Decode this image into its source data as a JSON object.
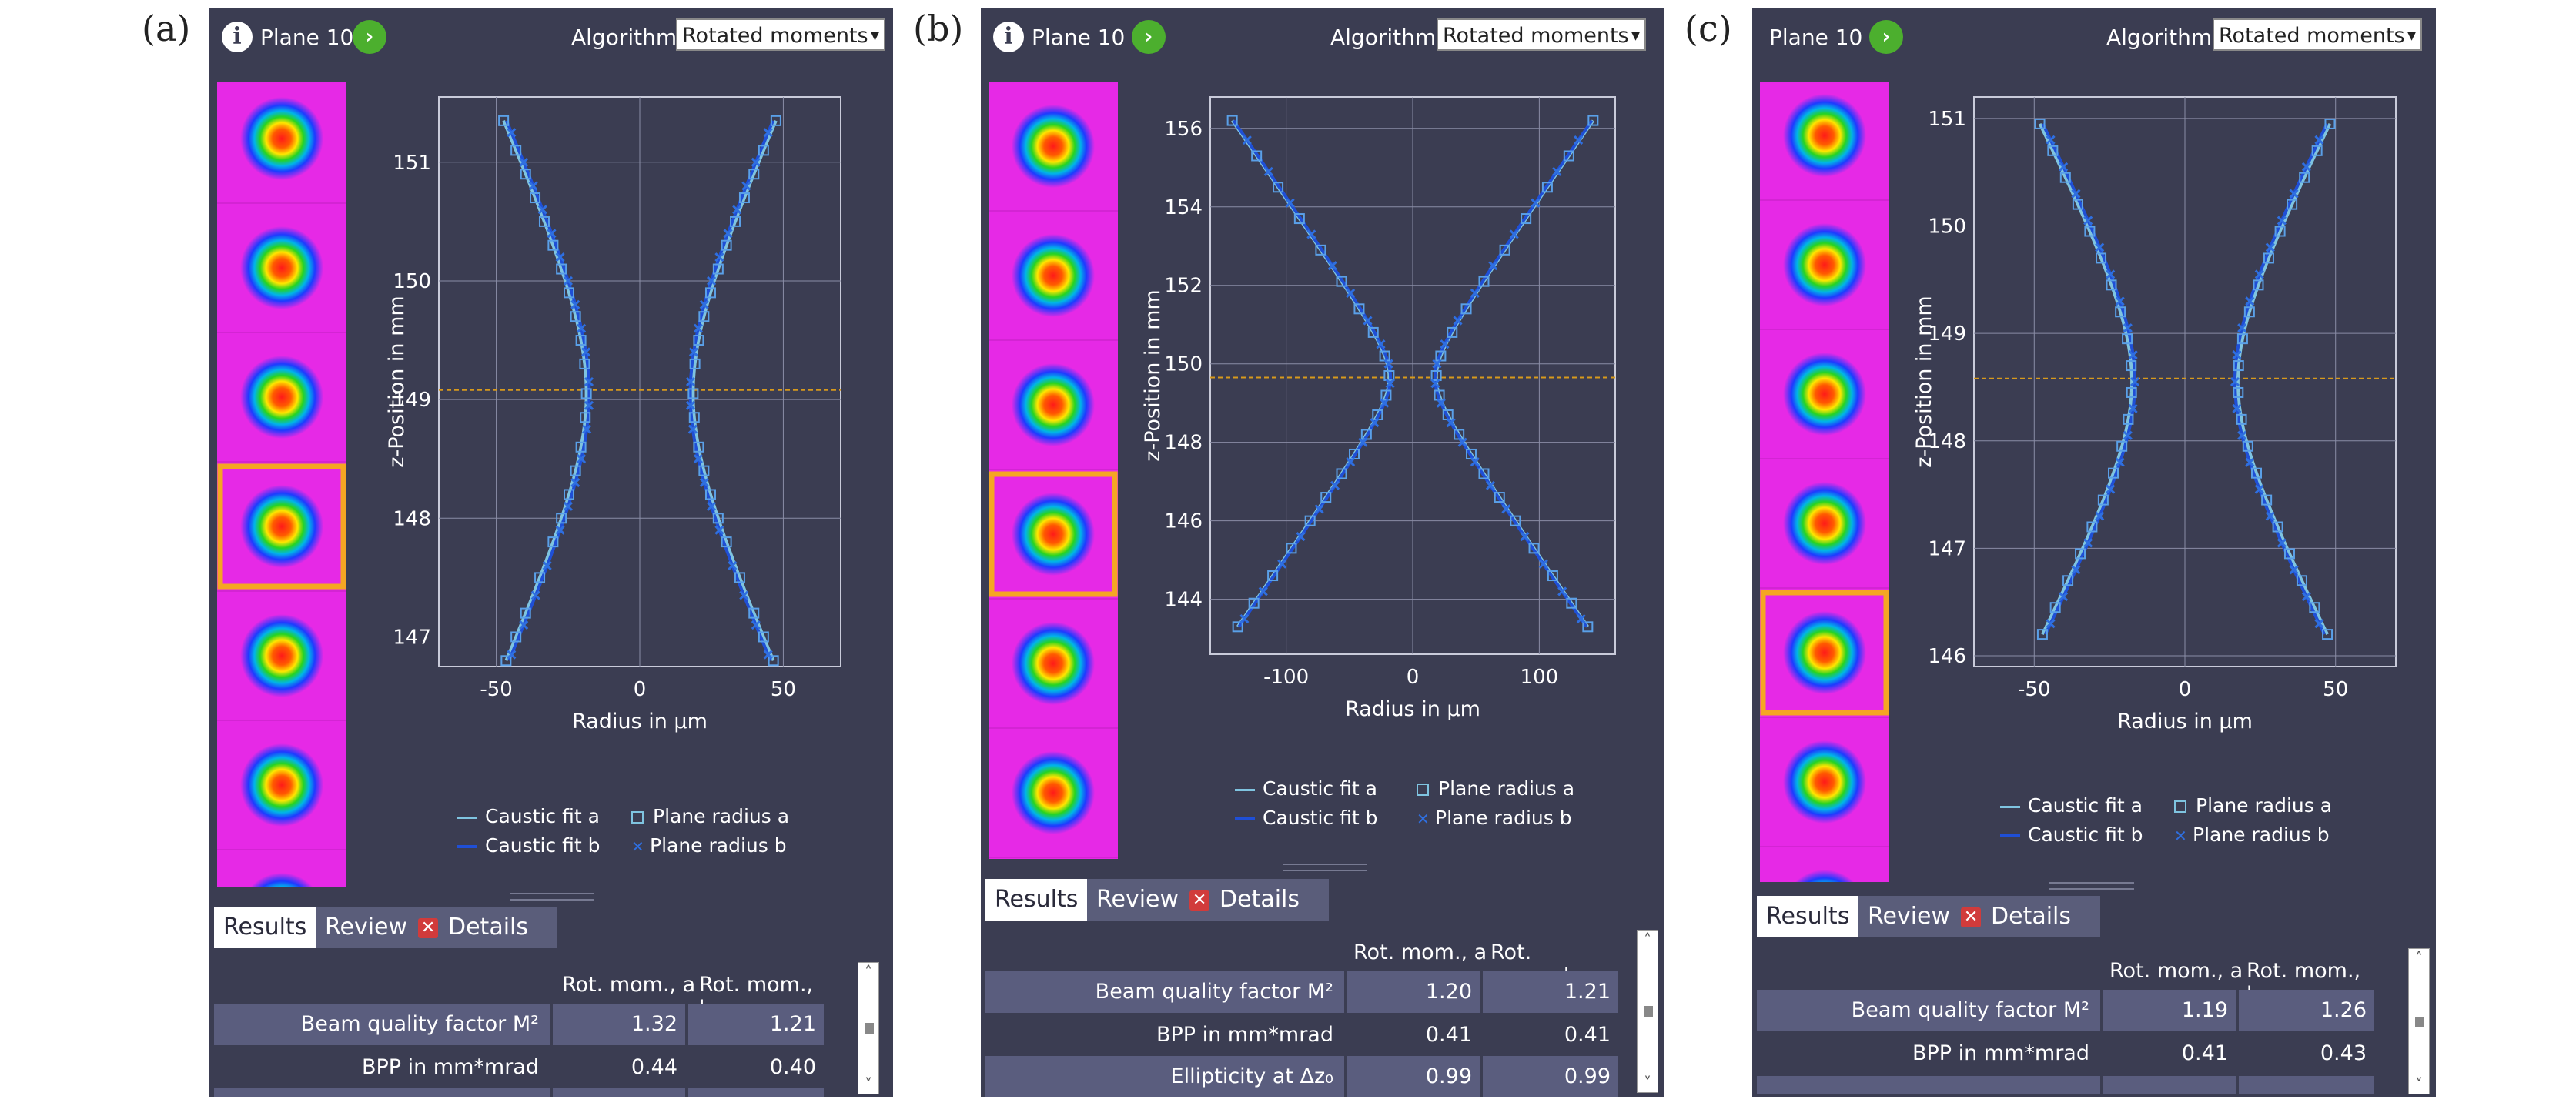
{
  "panels": [
    {
      "letter": "(a)",
      "plane_label": "Plane 10",
      "algorithm_label": "Algorithm",
      "algorithm_value": "Rotated moments",
      "chart_data": {
        "type": "line",
        "xlabel": "Radius in µm",
        "ylabel": "z-Position in mm",
        "xlim": [
          -70,
          70
        ],
        "ylim": [
          146.75,
          151.55
        ],
        "xticks": [
          -50,
          0,
          50
        ],
        "yticks": [
          147,
          148,
          149,
          150,
          151
        ],
        "grid": true,
        "focus_z": 149.08,
        "caustic": {
          "w0": 18,
          "z0": 149.05,
          "k": 18.8,
          "zmin": 146.8,
          "zmax": 151.35
        },
        "points_a_z": [
          146.8,
          147.0,
          147.2,
          147.5,
          147.8,
          148.0,
          148.2,
          148.4,
          148.6,
          148.85,
          149.05,
          149.3,
          149.5,
          149.7,
          149.9,
          150.1,
          150.3,
          150.5,
          150.7,
          150.9,
          151.1,
          151.35
        ],
        "points_b_z": [
          146.85,
          147.1,
          147.35,
          147.6,
          147.9,
          148.1,
          148.3,
          148.5,
          148.75,
          148.95,
          149.15,
          149.4,
          149.6,
          149.8,
          150.0,
          150.2,
          150.4,
          150.6,
          150.8,
          151.0,
          151.25
        ]
      },
      "legend": {
        "fit_a": "Caustic fit a",
        "fit_b": "Caustic fit b",
        "radius_a": "Plane radius a",
        "radius_b": "Plane radius b"
      },
      "tabs": {
        "results": "Results",
        "review": "Review",
        "details": "Details"
      },
      "table": {
        "headers": [
          "Rot. mom., a",
          "Rot. mom., b"
        ],
        "rows": [
          {
            "label": "Beam quality factor M²",
            "a": "1.32",
            "b": "1.21"
          },
          {
            "label": "BPP in mm*mrad",
            "a": "0.44",
            "b": "0.40"
          }
        ]
      }
    },
    {
      "letter": "(b)",
      "plane_label": "Plane 10",
      "algorithm_label": "Algorithm",
      "algorithm_value": "Rotated moments",
      "chart_data": {
        "type": "line",
        "xlabel": "Radius in µm",
        "ylabel": "z-Position in mm",
        "xlim": [
          -160,
          160
        ],
        "ylim": [
          142.6,
          156.8
        ],
        "xticks": [
          -100,
          0,
          100
        ],
        "yticks": [
          144,
          146,
          148,
          150,
          152,
          154,
          156
        ],
        "grid": true,
        "focus_z": 149.65,
        "caustic": {
          "w0": 18,
          "z0": 149.65,
          "k": 21.5,
          "zmin": 143.3,
          "zmax": 156.2
        },
        "points_a_z": [
          143.3,
          143.9,
          144.6,
          145.3,
          146.0,
          146.6,
          147.2,
          147.7,
          148.2,
          148.7,
          149.2,
          149.7,
          150.2,
          150.8,
          151.4,
          152.1,
          152.9,
          153.7,
          154.5,
          155.3,
          156.2
        ],
        "points_b_z": [
          143.5,
          144.2,
          144.9,
          145.6,
          146.3,
          146.9,
          147.5,
          148.0,
          148.5,
          149.0,
          149.5,
          150.0,
          150.5,
          151.1,
          151.8,
          152.5,
          153.3,
          154.1,
          154.9,
          155.7
        ]
      },
      "legend": {
        "fit_a": "Caustic fit a",
        "fit_b": "Caustic fit b",
        "radius_a": "Plane radius a",
        "radius_b": "Plane radius b"
      },
      "tabs": {
        "results": "Results",
        "review": "Review",
        "details": "Details"
      },
      "table": {
        "headers": [
          "Rot. mom., a",
          "Rot. mom., b"
        ],
        "rows": [
          {
            "label": "Beam quality factor M²",
            "a": "1.20",
            "b": "1.21"
          },
          {
            "label": "BPP in mm*mrad",
            "a": "0.41",
            "b": "0.41"
          },
          {
            "label": "Ellipticity at Δz₀",
            "a": "0.99",
            "b": "0.99"
          }
        ]
      }
    },
    {
      "letter": "(c)",
      "plane_label": "Plane 10",
      "algorithm_label": "Algorithm",
      "algorithm_value": "Rotated moments",
      "chart_data": {
        "type": "line",
        "xlabel": "Radius in µm",
        "ylabel": "z-Position in mm",
        "xlim": [
          -70,
          70
        ],
        "ylim": [
          145.9,
          151.2
        ],
        "xticks": [
          -50,
          0,
          50
        ],
        "yticks": [
          146,
          147,
          148,
          149,
          150,
          151
        ],
        "grid": true,
        "focus_z": 148.58,
        "caustic": {
          "w0": 17,
          "z0": 148.55,
          "k": 18.5,
          "zmin": 146.2,
          "zmax": 150.95
        },
        "points_a_z": [
          146.2,
          146.45,
          146.7,
          146.95,
          147.2,
          147.45,
          147.7,
          147.95,
          148.2,
          148.45,
          148.7,
          148.95,
          149.2,
          149.45,
          149.7,
          149.95,
          150.2,
          150.45,
          150.7,
          150.95
        ],
        "points_b_z": [
          146.3,
          146.55,
          146.8,
          147.05,
          147.3,
          147.55,
          147.8,
          148.05,
          148.3,
          148.55,
          148.8,
          149.05,
          149.3,
          149.55,
          149.8,
          150.05,
          150.3,
          150.55,
          150.8
        ]
      },
      "legend": {
        "fit_a": "Caustic fit a",
        "fit_b": "Caustic fit b",
        "radius_a": "Plane radius a",
        "radius_b": "Plane radius b"
      },
      "tabs": {
        "results": "Results",
        "review": "Review",
        "details": "Details"
      },
      "table": {
        "headers": [
          "Rot. mom., a",
          "Rot. mom., b"
        ],
        "rows": [
          {
            "label": "Beam quality factor M²",
            "a": "1.19",
            "b": "1.26"
          },
          {
            "label": "BPP in mm*mrad",
            "a": "0.41",
            "b": "0.43"
          }
        ]
      }
    }
  ],
  "colors": {
    "panel_bg": "#3b3d52",
    "beam_bg": "#e629e6",
    "selection": "#f5a623",
    "fit_a": "#7fc4e0",
    "fit_b": "#1f4fd6",
    "marker": "#2f6fe0",
    "focus_line": "#d89a1c",
    "grid": "#8a8da6"
  }
}
